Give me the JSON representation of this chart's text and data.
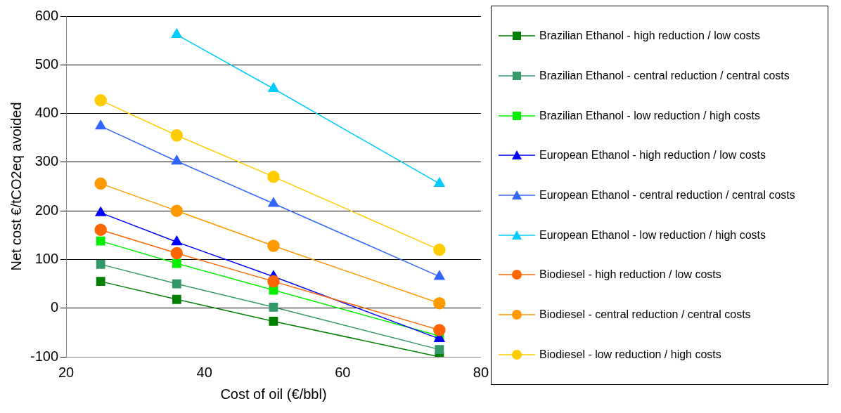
{
  "chart_data": {
    "type": "line",
    "xlabel": "Cost of oil (€/bbl)",
    "ylabel": "Net cost €/tCO2eq avoided",
    "x": [
      25,
      36,
      50,
      74
    ],
    "xlim": [
      20,
      80
    ],
    "xticks": [
      20,
      40,
      60,
      80
    ],
    "ylim": [
      -100,
      600
    ],
    "yticks": [
      -100,
      0,
      100,
      200,
      300,
      400,
      500,
      600
    ],
    "grid": "y",
    "legend": "right",
    "series": [
      {
        "name": "Brazilian Ethanol - high reduction / low  costs",
        "color": "#008000",
        "marker": "square",
        "values": [
          55,
          18,
          -27,
          -100
        ]
      },
      {
        "name": "Brazilian Ethanol - central reduction / central costs",
        "color": "#339966",
        "marker": "square",
        "values": [
          90,
          50,
          2,
          -85
        ]
      },
      {
        "name": "Brazilian Ethanol - low  reduction / high costs",
        "color": "#00ee00",
        "marker": "square",
        "values": [
          138,
          92,
          37,
          -57
        ]
      },
      {
        "name": "European Ethanol - high reduction / low  costs",
        "color": "#0000ff",
        "marker": "triangle",
        "values": [
          196,
          136,
          65,
          -63
        ]
      },
      {
        "name": "European Ethanol - central reduction / central costs",
        "color": "#3366ff",
        "marker": "triangle",
        "values": [
          374,
          302,
          215,
          65
        ]
      },
      {
        "name": "European Ethanol - low  reduction / high costs",
        "color": "#00ccff",
        "marker": "triangle",
        "values": [
          null,
          562,
          451,
          256
        ]
      },
      {
        "name": "Biodiesel - high reduction / low  costs",
        "color": "#ff6600",
        "marker": "circle",
        "values": [
          161,
          113,
          55,
          -45
        ]
      },
      {
        "name": "Biodiesel - central reduction / central costs",
        "color": "#ff9900",
        "marker": "circle",
        "values": [
          256,
          200,
          128,
          10
        ]
      },
      {
        "name": "Biodiesel - low  reduction / high costs",
        "color": "#ffcc00",
        "marker": "circle",
        "values": [
          427,
          355,
          270,
          120
        ]
      }
    ]
  }
}
